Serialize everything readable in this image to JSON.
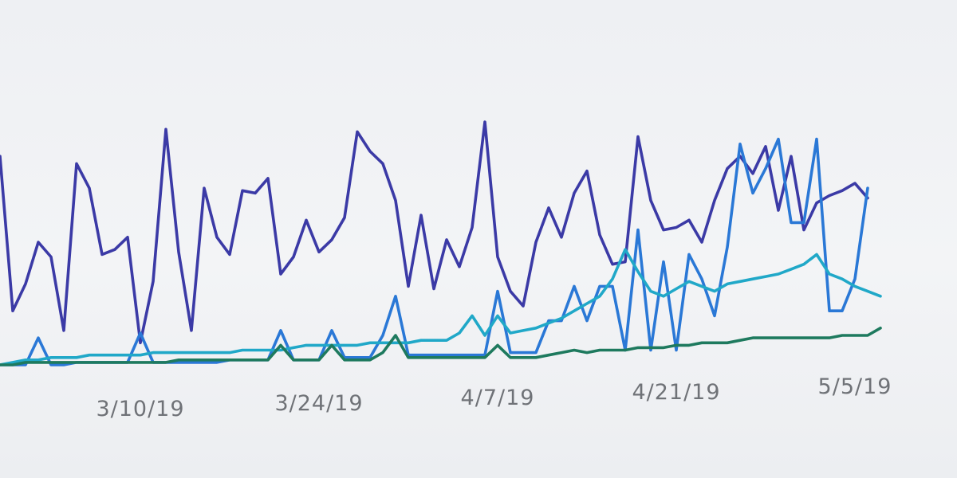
{
  "chart_data": {
    "type": "line",
    "x_axis": {
      "type": "date",
      "range": [
        "2019-02-27",
        "2019-05-13"
      ],
      "tick_labels": [
        {
          "date": "2019-03-10",
          "label": "3/10/19"
        },
        {
          "date": "2019-03-24",
          "label": "3/24/19"
        },
        {
          "date": "2019-04-07",
          "label": "4/7/19"
        },
        {
          "date": "2019-04-21",
          "label": "4/21/19"
        },
        {
          "date": "2019-05-05",
          "label": "5/5/19"
        }
      ]
    },
    "y_axis": {
      "visible": false,
      "range": [
        0,
        100
      ]
    },
    "grid": false,
    "legend": "none",
    "series": [
      {
        "color": "#3b3aa6",
        "points": [
          [
            "2019-02-27",
            85
          ],
          [
            "2019-02-28",
            22
          ],
          [
            "2019-03-01",
            33
          ],
          [
            "2019-03-02",
            50
          ],
          [
            "2019-03-03",
            44
          ],
          [
            "2019-03-04",
            14
          ],
          [
            "2019-03-05",
            82
          ],
          [
            "2019-03-06",
            72
          ],
          [
            "2019-03-07",
            45
          ],
          [
            "2019-03-08",
            47
          ],
          [
            "2019-03-09",
            52
          ],
          [
            "2019-03-10",
            9
          ],
          [
            "2019-03-11",
            34
          ],
          [
            "2019-03-12",
            96
          ],
          [
            "2019-03-13",
            46
          ],
          [
            "2019-03-14",
            14
          ],
          [
            "2019-03-15",
            72
          ],
          [
            "2019-03-16",
            52
          ],
          [
            "2019-03-17",
            45
          ],
          [
            "2019-03-18",
            71
          ],
          [
            "2019-03-19",
            70
          ],
          [
            "2019-03-20",
            76
          ],
          [
            "2019-03-21",
            37
          ],
          [
            "2019-03-22",
            44
          ],
          [
            "2019-03-23",
            59
          ],
          [
            "2019-03-24",
            46
          ],
          [
            "2019-03-25",
            51
          ],
          [
            "2019-03-26",
            60
          ],
          [
            "2019-03-27",
            95
          ],
          [
            "2019-03-28",
            87
          ],
          [
            "2019-03-29",
            82
          ],
          [
            "2019-03-30",
            67
          ],
          [
            "2019-03-31",
            32
          ],
          [
            "2019-04-01",
            61
          ],
          [
            "2019-04-02",
            31
          ],
          [
            "2019-04-03",
            51
          ],
          [
            "2019-04-04",
            40
          ],
          [
            "2019-04-05",
            56
          ],
          [
            "2019-04-06",
            99
          ],
          [
            "2019-04-07",
            44
          ],
          [
            "2019-04-08",
            30
          ],
          [
            "2019-04-09",
            24
          ],
          [
            "2019-04-10",
            50
          ],
          [
            "2019-04-11",
            64
          ],
          [
            "2019-04-12",
            52
          ],
          [
            "2019-04-13",
            70
          ],
          [
            "2019-04-14",
            79
          ],
          [
            "2019-04-15",
            53
          ],
          [
            "2019-04-16",
            41
          ],
          [
            "2019-04-17",
            42
          ],
          [
            "2019-04-18",
            93
          ],
          [
            "2019-04-19",
            67
          ],
          [
            "2019-04-20",
            55
          ],
          [
            "2019-04-21",
            56
          ],
          [
            "2019-04-22",
            59
          ],
          [
            "2019-04-23",
            50
          ],
          [
            "2019-04-24",
            67
          ],
          [
            "2019-04-25",
            80
          ],
          [
            "2019-04-26",
            85
          ],
          [
            "2019-04-27",
            78
          ],
          [
            "2019-04-28",
            89
          ],
          [
            "2019-04-29",
            63
          ],
          [
            "2019-04-30",
            85
          ],
          [
            "2019-05-01",
            55
          ],
          [
            "2019-05-02",
            66
          ],
          [
            "2019-05-03",
            69
          ],
          [
            "2019-05-04",
            71
          ],
          [
            "2019-05-05",
            74
          ],
          [
            "2019-05-06",
            68
          ]
        ]
      },
      {
        "color": "#2a78d6",
        "points": [
          [
            "2019-02-27",
            0
          ],
          [
            "2019-02-28",
            0
          ],
          [
            "2019-03-01",
            0
          ],
          [
            "2019-03-02",
            11
          ],
          [
            "2019-03-03",
            0
          ],
          [
            "2019-03-04",
            0
          ],
          [
            "2019-03-05",
            1
          ],
          [
            "2019-03-06",
            1
          ],
          [
            "2019-03-07",
            1
          ],
          [
            "2019-03-08",
            1
          ],
          [
            "2019-03-09",
            1
          ],
          [
            "2019-03-10",
            13
          ],
          [
            "2019-03-11",
            1
          ],
          [
            "2019-03-12",
            1
          ],
          [
            "2019-03-13",
            1
          ],
          [
            "2019-03-14",
            1
          ],
          [
            "2019-03-15",
            1
          ],
          [
            "2019-03-16",
            1
          ],
          [
            "2019-03-17",
            2
          ],
          [
            "2019-03-18",
            2
          ],
          [
            "2019-03-19",
            2
          ],
          [
            "2019-03-20",
            2
          ],
          [
            "2019-03-21",
            14
          ],
          [
            "2019-03-22",
            2
          ],
          [
            "2019-03-23",
            2
          ],
          [
            "2019-03-24",
            2
          ],
          [
            "2019-03-25",
            14
          ],
          [
            "2019-03-26",
            3
          ],
          [
            "2019-03-27",
            3
          ],
          [
            "2019-03-28",
            3
          ],
          [
            "2019-03-29",
            12
          ],
          [
            "2019-03-30",
            28
          ],
          [
            "2019-03-31",
            4
          ],
          [
            "2019-04-01",
            4
          ],
          [
            "2019-04-02",
            4
          ],
          [
            "2019-04-03",
            4
          ],
          [
            "2019-04-04",
            4
          ],
          [
            "2019-04-05",
            4
          ],
          [
            "2019-04-06",
            4
          ],
          [
            "2019-04-07",
            30
          ],
          [
            "2019-04-08",
            5
          ],
          [
            "2019-04-09",
            5
          ],
          [
            "2019-04-10",
            5
          ],
          [
            "2019-04-11",
            18
          ],
          [
            "2019-04-12",
            18
          ],
          [
            "2019-04-13",
            32
          ],
          [
            "2019-04-14",
            18
          ],
          [
            "2019-04-15",
            32
          ],
          [
            "2019-04-16",
            32
          ],
          [
            "2019-04-17",
            6
          ],
          [
            "2019-04-18",
            55
          ],
          [
            "2019-04-19",
            6
          ],
          [
            "2019-04-20",
            42
          ],
          [
            "2019-04-21",
            6
          ],
          [
            "2019-04-22",
            45
          ],
          [
            "2019-04-23",
            35
          ],
          [
            "2019-04-24",
            20
          ],
          [
            "2019-04-25",
            48
          ],
          [
            "2019-04-26",
            90
          ],
          [
            "2019-04-27",
            70
          ],
          [
            "2019-04-28",
            80
          ],
          [
            "2019-04-29",
            92
          ],
          [
            "2019-04-30",
            58
          ],
          [
            "2019-05-01",
            58
          ],
          [
            "2019-05-02",
            92
          ],
          [
            "2019-05-03",
            22
          ],
          [
            "2019-05-04",
            22
          ],
          [
            "2019-05-05",
            35
          ],
          [
            "2019-05-06",
            72
          ]
        ]
      },
      {
        "color": "#20a8c8",
        "points": [
          [
            "2019-02-27",
            0
          ],
          [
            "2019-02-28",
            1
          ],
          [
            "2019-03-01",
            2
          ],
          [
            "2019-03-02",
            2
          ],
          [
            "2019-03-03",
            3
          ],
          [
            "2019-03-04",
            3
          ],
          [
            "2019-03-05",
            3
          ],
          [
            "2019-03-06",
            4
          ],
          [
            "2019-03-07",
            4
          ],
          [
            "2019-03-08",
            4
          ],
          [
            "2019-03-09",
            4
          ],
          [
            "2019-03-10",
            4
          ],
          [
            "2019-03-11",
            5
          ],
          [
            "2019-03-12",
            5
          ],
          [
            "2019-03-13",
            5
          ],
          [
            "2019-03-14",
            5
          ],
          [
            "2019-03-15",
            5
          ],
          [
            "2019-03-16",
            5
          ],
          [
            "2019-03-17",
            5
          ],
          [
            "2019-03-18",
            6
          ],
          [
            "2019-03-19",
            6
          ],
          [
            "2019-03-20",
            6
          ],
          [
            "2019-03-21",
            6
          ],
          [
            "2019-03-22",
            7
          ],
          [
            "2019-03-23",
            8
          ],
          [
            "2019-03-24",
            8
          ],
          [
            "2019-03-25",
            8
          ],
          [
            "2019-03-26",
            8
          ],
          [
            "2019-03-27",
            8
          ],
          [
            "2019-03-28",
            9
          ],
          [
            "2019-03-29",
            9
          ],
          [
            "2019-03-30",
            9
          ],
          [
            "2019-03-31",
            9
          ],
          [
            "2019-04-01",
            10
          ],
          [
            "2019-04-02",
            10
          ],
          [
            "2019-04-03",
            10
          ],
          [
            "2019-04-04",
            13
          ],
          [
            "2019-04-05",
            20
          ],
          [
            "2019-04-06",
            12
          ],
          [
            "2019-04-07",
            20
          ],
          [
            "2019-04-08",
            13
          ],
          [
            "2019-04-09",
            14
          ],
          [
            "2019-04-10",
            15
          ],
          [
            "2019-04-11",
            17
          ],
          [
            "2019-04-12",
            19
          ],
          [
            "2019-04-13",
            22
          ],
          [
            "2019-04-14",
            25
          ],
          [
            "2019-04-15",
            28
          ],
          [
            "2019-04-16",
            35
          ],
          [
            "2019-04-17",
            47
          ],
          [
            "2019-04-18",
            38
          ],
          [
            "2019-04-19",
            30
          ],
          [
            "2019-04-20",
            28
          ],
          [
            "2019-04-21",
            31
          ],
          [
            "2019-04-22",
            34
          ],
          [
            "2019-04-23",
            32
          ],
          [
            "2019-04-24",
            30
          ],
          [
            "2019-04-25",
            33
          ],
          [
            "2019-04-26",
            34
          ],
          [
            "2019-04-27",
            35
          ],
          [
            "2019-04-28",
            36
          ],
          [
            "2019-04-29",
            37
          ],
          [
            "2019-04-30",
            39
          ],
          [
            "2019-05-01",
            41
          ],
          [
            "2019-05-02",
            45
          ],
          [
            "2019-05-03",
            37
          ],
          [
            "2019-05-04",
            35
          ],
          [
            "2019-05-05",
            32
          ],
          [
            "2019-05-06",
            30
          ],
          [
            "2019-05-07",
            28
          ]
        ]
      },
      {
        "color": "#1e7a5e",
        "points": [
          [
            "2019-02-27",
            0
          ],
          [
            "2019-02-28",
            0
          ],
          [
            "2019-03-01",
            1
          ],
          [
            "2019-03-02",
            1
          ],
          [
            "2019-03-03",
            1
          ],
          [
            "2019-03-04",
            1
          ],
          [
            "2019-03-05",
            1
          ],
          [
            "2019-03-06",
            1
          ],
          [
            "2019-03-07",
            1
          ],
          [
            "2019-03-08",
            1
          ],
          [
            "2019-03-09",
            1
          ],
          [
            "2019-03-10",
            1
          ],
          [
            "2019-03-11",
            1
          ],
          [
            "2019-03-12",
            1
          ],
          [
            "2019-03-13",
            2
          ],
          [
            "2019-03-14",
            2
          ],
          [
            "2019-03-15",
            2
          ],
          [
            "2019-03-16",
            2
          ],
          [
            "2019-03-17",
            2
          ],
          [
            "2019-03-18",
            2
          ],
          [
            "2019-03-19",
            2
          ],
          [
            "2019-03-20",
            2
          ],
          [
            "2019-03-21",
            8
          ],
          [
            "2019-03-22",
            2
          ],
          [
            "2019-03-23",
            2
          ],
          [
            "2019-03-24",
            2
          ],
          [
            "2019-03-25",
            8
          ],
          [
            "2019-03-26",
            2
          ],
          [
            "2019-03-27",
            2
          ],
          [
            "2019-03-28",
            2
          ],
          [
            "2019-03-29",
            5
          ],
          [
            "2019-03-30",
            12
          ],
          [
            "2019-03-31",
            3
          ],
          [
            "2019-04-01",
            3
          ],
          [
            "2019-04-02",
            3
          ],
          [
            "2019-04-03",
            3
          ],
          [
            "2019-04-04",
            3
          ],
          [
            "2019-04-05",
            3
          ],
          [
            "2019-04-06",
            3
          ],
          [
            "2019-04-07",
            8
          ],
          [
            "2019-04-08",
            3
          ],
          [
            "2019-04-09",
            3
          ],
          [
            "2019-04-10",
            3
          ],
          [
            "2019-04-11",
            4
          ],
          [
            "2019-04-12",
            5
          ],
          [
            "2019-04-13",
            6
          ],
          [
            "2019-04-14",
            5
          ],
          [
            "2019-04-15",
            6
          ],
          [
            "2019-04-16",
            6
          ],
          [
            "2019-04-17",
            6
          ],
          [
            "2019-04-18",
            7
          ],
          [
            "2019-04-19",
            7
          ],
          [
            "2019-04-20",
            7
          ],
          [
            "2019-04-21",
            8
          ],
          [
            "2019-04-22",
            8
          ],
          [
            "2019-04-23",
            9
          ],
          [
            "2019-04-24",
            9
          ],
          [
            "2019-04-25",
            9
          ],
          [
            "2019-04-26",
            10
          ],
          [
            "2019-04-27",
            11
          ],
          [
            "2019-04-28",
            11
          ],
          [
            "2019-04-29",
            11
          ],
          [
            "2019-04-30",
            11
          ],
          [
            "2019-05-01",
            11
          ],
          [
            "2019-05-02",
            11
          ],
          [
            "2019-05-03",
            11
          ],
          [
            "2019-05-04",
            12
          ],
          [
            "2019-05-05",
            12
          ],
          [
            "2019-05-06",
            12
          ],
          [
            "2019-05-07",
            15
          ]
        ]
      }
    ]
  }
}
